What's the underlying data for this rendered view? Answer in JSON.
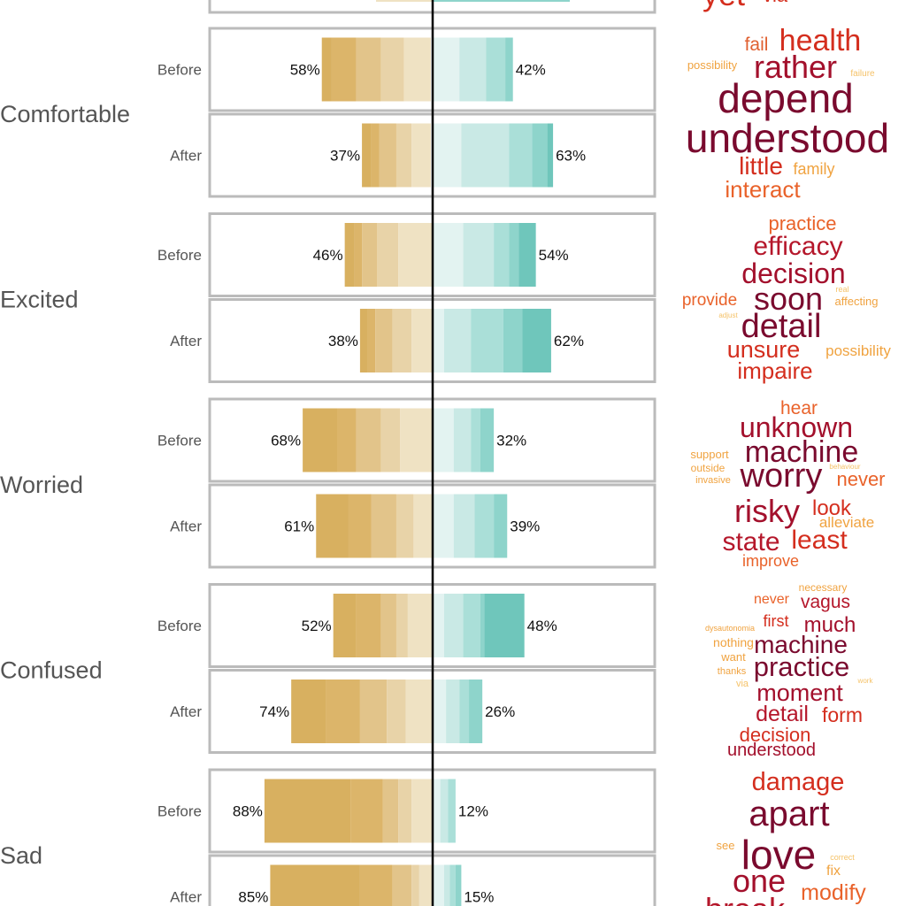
{
  "colors": {
    "negative": [
      "#d8b060",
      "#dcb56a",
      "#e2c48a",
      "#e8d3a8",
      "#efe2c3",
      "#f6eedd"
    ],
    "positive": [
      "#e3f3f1",
      "#c9e9e5",
      "#aadfd8",
      "#8ed4cb",
      "#6fc6bb",
      "#55b7ab"
    ],
    "frame": "#bbbbbb",
    "axis": "#000000"
  },
  "chart_data": {
    "type": "bar",
    "description": "Diverging stacked bar chart of emotion ratings Before vs After, with word clouds",
    "categories": [
      "Comfortable",
      "Excited",
      "Worried",
      "Confused",
      "Sad"
    ],
    "rows": [
      "Before",
      "After"
    ],
    "xlim": [
      -100,
      100
    ],
    "panels": [
      {
        "category": "Comfortable",
        "rows": [
          {
            "label": "Before",
            "negative": 58,
            "positive": 42,
            "neg_segments": [
              5,
              13,
              13,
              12,
              14
            ],
            "pos_segments": [
              14,
              14,
              10,
              4
            ]
          },
          {
            "label": "After",
            "negative": 37,
            "positive": 63,
            "neg_segments": [
              5,
              4,
              9,
              8,
              10
            ],
            "pos_segments": [
              15,
              25,
              12,
              8,
              3
            ]
          }
        ]
      },
      {
        "category": "Excited",
        "rows": [
          {
            "label": "Before",
            "negative": 46,
            "positive": 54,
            "neg_segments": [
              5,
              4,
              8,
              11,
              18
            ],
            "pos_segments": [
              16,
              16,
              8,
              5,
              9
            ]
          },
          {
            "label": "After",
            "negative": 38,
            "positive": 62,
            "neg_segments": [
              4,
              4,
              9,
              10,
              11
            ],
            "pos_segments": [
              6,
              14,
              17,
              10,
              15
            ]
          }
        ]
      },
      {
        "category": "Worried",
        "rows": [
          {
            "label": "Before",
            "negative": 68,
            "positive": 32,
            "neg_segments": [
              18,
              10,
              13,
              10,
              17
            ],
            "pos_segments": [
              11,
              9,
              5,
              7
            ]
          },
          {
            "label": "After",
            "negative": 61,
            "positive": 39,
            "neg_segments": [
              17,
              12,
              13,
              9,
              10
            ],
            "pos_segments": [
              11,
              11,
              10,
              7
            ]
          }
        ]
      },
      {
        "category": "Confused",
        "rows": [
          {
            "label": "Before",
            "negative": 52,
            "positive": 48,
            "neg_segments": [
              12,
              13,
              8,
              6,
              13
            ],
            "pos_segments": [
              6,
              10,
              9,
              2,
              21
            ]
          },
          {
            "label": "After",
            "negative": 74,
            "positive": 26,
            "neg_segments": [
              18,
              18,
              14,
              10,
              14
            ],
            "pos_segments": [
              7,
              7,
              5,
              7
            ]
          }
        ]
      },
      {
        "category": "Sad",
        "rows": [
          {
            "label": "Before",
            "negative": 88,
            "positive": 12,
            "neg_segments": [
              45,
              17,
              8,
              7,
              11
            ],
            "pos_segments": [
              4,
              4,
              4
            ]
          },
          {
            "label": "After",
            "negative": 85,
            "positive": 15,
            "neg_segments": [
              47,
              17,
              10,
              4,
              7
            ],
            "pos_segments": [
              6,
              3,
              3,
              3
            ]
          }
        ]
      }
    ],
    "wordclouds": [
      {
        "category": "Comfortable",
        "words": [
          {
            "text": "fail",
            "size": 21,
            "color": "#e06030"
          },
          {
            "text": "health",
            "size": 34,
            "color": "#d42e1e"
          },
          {
            "text": "possibility",
            "size": 13,
            "color": "#f0a340"
          },
          {
            "text": "rather",
            "size": 36,
            "color": "#a3102c"
          },
          {
            "text": "failure",
            "size": 10,
            "color": "#f5c268"
          },
          {
            "text": "depend",
            "size": 46,
            "color": "#7a0a2e"
          },
          {
            "text": "understood",
            "size": 46,
            "color": "#7a0a2e"
          },
          {
            "text": "little",
            "size": 28,
            "color": "#d42e1e"
          },
          {
            "text": "family",
            "size": 18,
            "color": "#f0a340"
          },
          {
            "text": "interact",
            "size": 26,
            "color": "#e9622a"
          }
        ]
      },
      {
        "category": "Excited",
        "words": [
          {
            "text": "practice",
            "size": 22,
            "color": "#e9622a"
          },
          {
            "text": "efficacy",
            "size": 30,
            "color": "#b5172b"
          },
          {
            "text": "decision",
            "size": 32,
            "color": "#a3102c"
          },
          {
            "text": "provide",
            "size": 19,
            "color": "#e9622a"
          },
          {
            "text": "soon",
            "size": 36,
            "color": "#7a0a2e"
          },
          {
            "text": "real",
            "size": 9,
            "color": "#f5c268"
          },
          {
            "text": "affecting",
            "size": 13,
            "color": "#f0a340"
          },
          {
            "text": "adjust",
            "size": 8,
            "color": "#f5c268"
          },
          {
            "text": "detail",
            "size": 38,
            "color": "#7a0a2e"
          },
          {
            "text": "unsure",
            "size": 27,
            "color": "#d42e1e"
          },
          {
            "text": "possibility",
            "size": 17,
            "color": "#f0a340"
          },
          {
            "text": "impaire",
            "size": 26,
            "color": "#d42e1e"
          }
        ]
      },
      {
        "category": "Worried",
        "words": [
          {
            "text": "hear",
            "size": 21,
            "color": "#e9622a"
          },
          {
            "text": "unknown",
            "size": 32,
            "color": "#a3102c"
          },
          {
            "text": "support",
            "size": 13,
            "color": "#f0a340"
          },
          {
            "text": "machine",
            "size": 34,
            "color": "#7a0a2e"
          },
          {
            "text": "outside",
            "size": 12,
            "color": "#f0a340"
          },
          {
            "text": "behaviour",
            "size": 8,
            "color": "#f5c268"
          },
          {
            "text": "invasive",
            "size": 11,
            "color": "#f0a340"
          },
          {
            "text": "worry",
            "size": 38,
            "color": "#7a0a2e"
          },
          {
            "text": "never",
            "size": 22,
            "color": "#e9622a"
          },
          {
            "text": "risky",
            "size": 36,
            "color": "#a3102c"
          },
          {
            "text": "look",
            "size": 24,
            "color": "#d42e1e"
          },
          {
            "text": "alleviate",
            "size": 17,
            "color": "#f0a340"
          },
          {
            "text": "state",
            "size": 30,
            "color": "#b5172b"
          },
          {
            "text": "least",
            "size": 30,
            "color": "#d42e1e"
          },
          {
            "text": "improve",
            "size": 18,
            "color": "#e9622a"
          }
        ]
      },
      {
        "category": "Confused",
        "words": [
          {
            "text": "necessary",
            "size": 12,
            "color": "#f0a340"
          },
          {
            "text": "never",
            "size": 16,
            "color": "#e9622a"
          },
          {
            "text": "vagus",
            "size": 21,
            "color": "#b5172b"
          },
          {
            "text": "dysautonomia",
            "size": 9,
            "color": "#f0a340"
          },
          {
            "text": "first",
            "size": 18,
            "color": "#d42e1e"
          },
          {
            "text": "much",
            "size": 24,
            "color": "#a3102c"
          },
          {
            "text": "nothing",
            "size": 14,
            "color": "#f0a340"
          },
          {
            "text": "machine",
            "size": 28,
            "color": "#7a0a2e"
          },
          {
            "text": "want",
            "size": 13,
            "color": "#f0a340"
          },
          {
            "text": "practice",
            "size": 31,
            "color": "#7a0a2e"
          },
          {
            "text": "thanks",
            "size": 11,
            "color": "#f0a340"
          },
          {
            "text": "via",
            "size": 11,
            "color": "#f5c268"
          },
          {
            "text": "work",
            "size": 8,
            "color": "#f5c268"
          },
          {
            "text": "moment",
            "size": 27,
            "color": "#a3102c"
          },
          {
            "text": "detail",
            "size": 25,
            "color": "#b5172b"
          },
          {
            "text": "form",
            "size": 23,
            "color": "#d42e1e"
          },
          {
            "text": "decision",
            "size": 22,
            "color": "#d42e1e"
          },
          {
            "text": "understood",
            "size": 20,
            "color": "#a3102c"
          }
        ]
      },
      {
        "category": "Sad",
        "words": [
          {
            "text": "damage",
            "size": 29,
            "color": "#d42e1e"
          },
          {
            "text": "apart",
            "size": 40,
            "color": "#7a0a2e"
          },
          {
            "text": "see",
            "size": 13,
            "color": "#f0a340"
          },
          {
            "text": "love",
            "size": 46,
            "color": "#7a0a2e"
          },
          {
            "text": "correct",
            "size": 9,
            "color": "#f5c268"
          },
          {
            "text": "fix",
            "size": 16,
            "color": "#f0a340"
          },
          {
            "text": "one",
            "size": 36,
            "color": "#a3102c"
          },
          {
            "text": "modify",
            "size": 25,
            "color": "#e9622a"
          }
        ]
      }
    ]
  }
}
